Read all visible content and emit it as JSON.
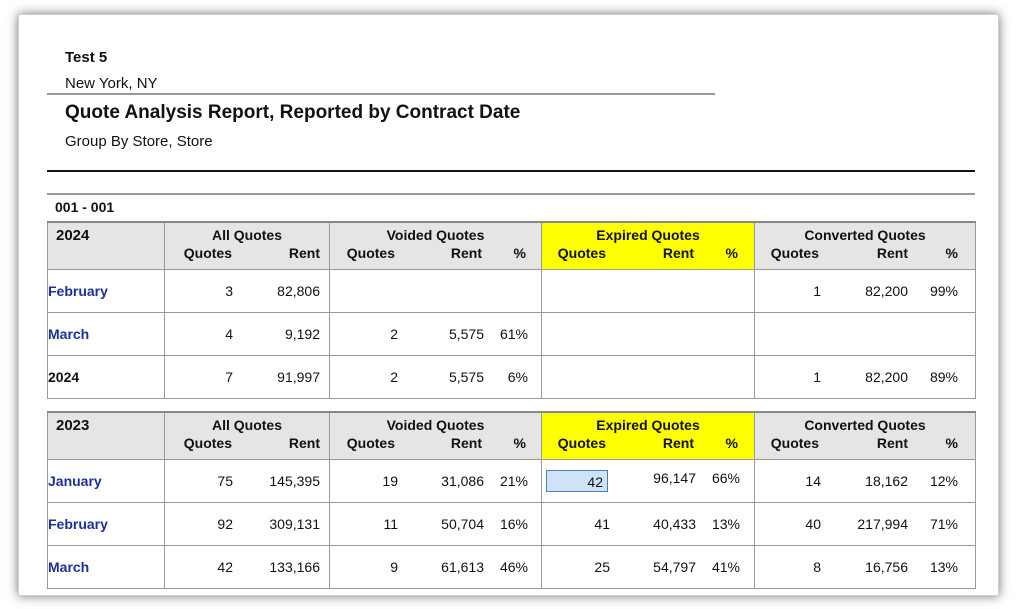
{
  "report": {
    "company": "Test 5",
    "location": "New York, NY",
    "title": "Quote Analysis Report, Reported by Contract Date",
    "subtitle": "Group By Store, Store",
    "store": "001 - 001"
  },
  "headers": {
    "groups": [
      "All Quotes",
      "Voided Quotes",
      "Expired Quotes",
      "Converted Quotes"
    ],
    "quotes": "Quotes",
    "rent": "Rent",
    "pct": "%"
  },
  "colors": {
    "highlight": "#ffff00",
    "month_link": "#1a2fa0",
    "header_bg": "#e5e5e5"
  },
  "sections": [
    {
      "year": "2024",
      "rows": [
        {
          "label": "February",
          "type": "month",
          "all": {
            "q": "3",
            "r": "82,806"
          },
          "voided": {
            "q": "",
            "r": "",
            "p": ""
          },
          "expired": {
            "q": "",
            "r": "",
            "p": ""
          },
          "converted": {
            "q": "1",
            "r": "82,200",
            "p": "99%"
          }
        },
        {
          "label": "March",
          "type": "month",
          "all": {
            "q": "4",
            "r": "9,192"
          },
          "voided": {
            "q": "2",
            "r": "5,575",
            "p": "61%"
          },
          "expired": {
            "q": "",
            "r": "",
            "p": ""
          },
          "converted": {
            "q": "",
            "r": "",
            "p": ""
          }
        },
        {
          "label": "2024",
          "type": "total",
          "all": {
            "q": "7",
            "r": "91,997"
          },
          "voided": {
            "q": "2",
            "r": "5,575",
            "p": "6%"
          },
          "expired": {
            "q": "",
            "r": "",
            "p": ""
          },
          "converted": {
            "q": "1",
            "r": "82,200",
            "p": "89%"
          }
        }
      ]
    },
    {
      "year": "2023",
      "rows": [
        {
          "label": "January",
          "type": "month",
          "all": {
            "q": "75",
            "r": "145,395"
          },
          "voided": {
            "q": "19",
            "r": "31,086",
            "p": "21%"
          },
          "expired": {
            "q": "42",
            "r": "96,147",
            "p": "66%"
          },
          "converted": {
            "q": "14",
            "r": "18,162",
            "p": "12%"
          }
        },
        {
          "label": "February",
          "type": "month",
          "all": {
            "q": "92",
            "r": "309,131"
          },
          "voided": {
            "q": "11",
            "r": "50,704",
            "p": "16%"
          },
          "expired": {
            "q": "41",
            "r": "40,433",
            "p": "13%"
          },
          "converted": {
            "q": "40",
            "r": "217,994",
            "p": "71%"
          }
        },
        {
          "label": "March",
          "type": "month",
          "all": {
            "q": "42",
            "r": "133,166"
          },
          "voided": {
            "q": "9",
            "r": "61,613",
            "p": "46%"
          },
          "expired": {
            "q": "25",
            "r": "54,797",
            "p": "41%"
          },
          "converted": {
            "q": "8",
            "r": "16,756",
            "p": "13%"
          }
        }
      ]
    }
  ]
}
